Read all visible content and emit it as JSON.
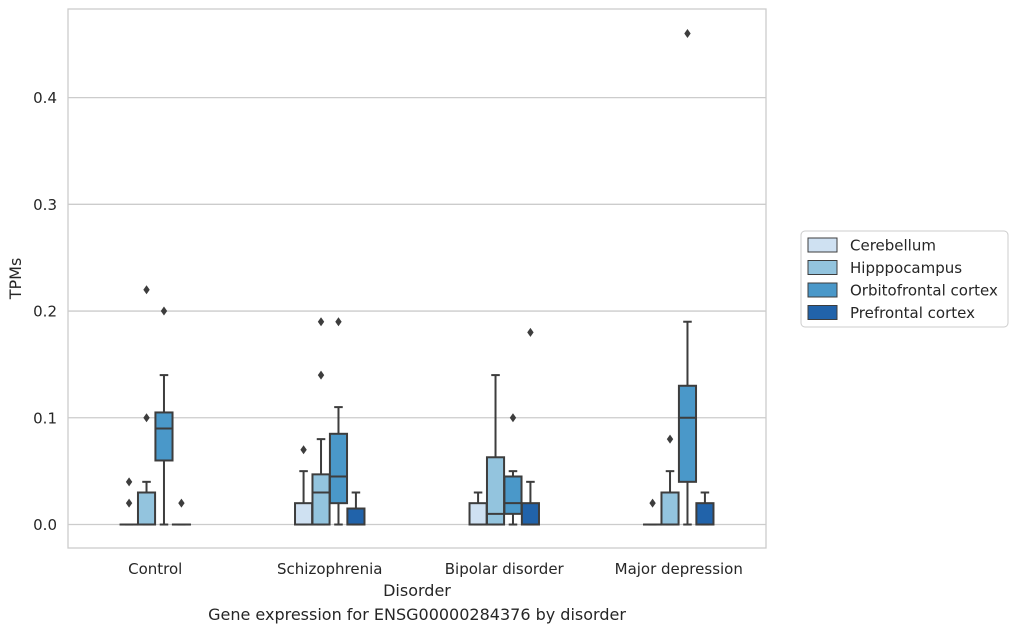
{
  "caption": "Gene expression for ENSG00000284376 by disorder",
  "colors": {
    "Cerebellum": "#cfe1f2",
    "Hipppocampus": "#93c4de",
    "Orbitofrontal cortex": "#4a98c9",
    "Prefrontal cortex": "#2163aa",
    "line": "#3d3d3d",
    "grid": "#cccccc"
  },
  "chart_data": {
    "type": "box",
    "xlabel": "Disorder",
    "ylabel": "TPMs",
    "ylim": [
      -0.022,
      0.483
    ],
    "yticks": [
      0.0,
      0.1,
      0.2,
      0.3,
      0.4
    ],
    "ytick_labels": [
      "0.0",
      "0.1",
      "0.2",
      "0.3",
      "0.4"
    ],
    "grid": "horizontal",
    "legend_position": "right",
    "categories": [
      "Control",
      "Schizophrenia",
      "Bipolar disorder",
      "Major depression"
    ],
    "series": [
      {
        "name": "Cerebellum",
        "boxes": [
          {
            "q1": 0.0,
            "median": 0.0,
            "q3": 0.0,
            "whislo": 0.0,
            "whishi": 0.0,
            "fliers": [
              0.04,
              0.02
            ]
          },
          {
            "q1": 0.0,
            "median": 0.0,
            "q3": 0.02,
            "whislo": 0.0,
            "whishi": 0.05,
            "fliers": [
              0.07
            ]
          },
          {
            "q1": 0.0,
            "median": 0.0,
            "q3": 0.02,
            "whislo": 0.0,
            "whishi": 0.03,
            "fliers": []
          },
          {
            "q1": 0.0,
            "median": 0.0,
            "q3": 0.0,
            "whislo": 0.0,
            "whishi": 0.0,
            "fliers": [
              0.02
            ]
          }
        ]
      },
      {
        "name": "Hipppocampus",
        "boxes": [
          {
            "q1": 0.0,
            "median": 0.0,
            "q3": 0.03,
            "whislo": 0.0,
            "whishi": 0.04,
            "fliers": [
              0.22,
              0.1
            ]
          },
          {
            "q1": 0.0,
            "median": 0.03,
            "q3": 0.047,
            "whislo": 0.0,
            "whishi": 0.08,
            "fliers": [
              0.19,
              0.14
            ]
          },
          {
            "q1": 0.0,
            "median": 0.01,
            "q3": 0.063,
            "whislo": 0.0,
            "whishi": 0.14,
            "fliers": []
          },
          {
            "q1": 0.0,
            "median": 0.0,
            "q3": 0.03,
            "whislo": 0.0,
            "whishi": 0.05,
            "fliers": [
              0.08
            ]
          }
        ]
      },
      {
        "name": "Orbitofrontal cortex",
        "boxes": [
          {
            "q1": 0.06,
            "median": 0.09,
            "q3": 0.105,
            "whislo": 0.0,
            "whishi": 0.14,
            "fliers": [
              0.2
            ]
          },
          {
            "q1": 0.02,
            "median": 0.045,
            "q3": 0.085,
            "whislo": 0.0,
            "whishi": 0.11,
            "fliers": [
              0.19
            ]
          },
          {
            "q1": 0.01,
            "median": 0.02,
            "q3": 0.045,
            "whislo": 0.0,
            "whishi": 0.05,
            "fliers": [
              0.1
            ]
          },
          {
            "q1": 0.04,
            "median": 0.1,
            "q3": 0.13,
            "whislo": 0.0,
            "whishi": 0.19,
            "fliers": [
              0.46
            ]
          }
        ]
      },
      {
        "name": "Prefrontal cortex",
        "boxes": [
          {
            "q1": 0.0,
            "median": 0.0,
            "q3": 0.0,
            "whislo": 0.0,
            "whishi": 0.0,
            "fliers": [
              0.02
            ]
          },
          {
            "q1": 0.0,
            "median": 0.0,
            "q3": 0.015,
            "whislo": 0.0,
            "whishi": 0.03,
            "fliers": []
          },
          {
            "q1": 0.0,
            "median": 0.0,
            "q3": 0.02,
            "whislo": 0.0,
            "whishi": 0.04,
            "fliers": [
              0.18
            ]
          },
          {
            "q1": 0.0,
            "median": 0.0,
            "q3": 0.02,
            "whislo": 0.0,
            "whishi": 0.03,
            "fliers": []
          }
        ]
      }
    ]
  }
}
